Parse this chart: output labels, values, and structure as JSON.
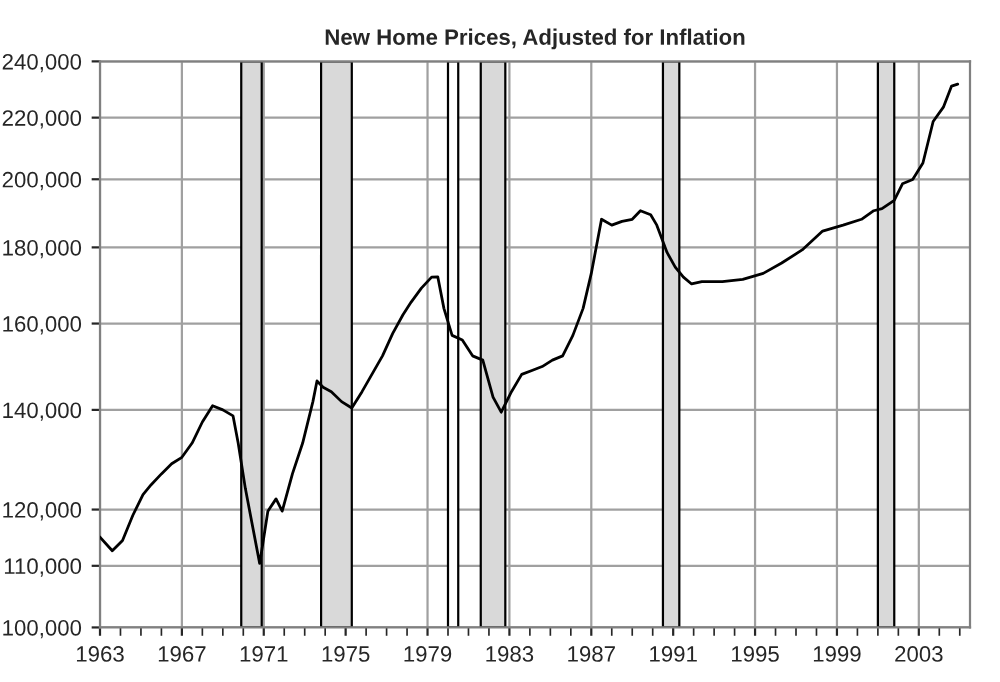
{
  "chart_data": {
    "type": "line",
    "title": "New Home Prices, Adjusted for Inflation",
    "log": "y",
    "x": [
      1963.0,
      1963.6,
      1964.1,
      1964.6,
      1965.1,
      1965.5,
      1966.0,
      1966.5,
      1967.0,
      1967.5,
      1968.0,
      1968.5,
      1969.0,
      1969.5,
      1969.75,
      1970.1,
      1970.8,
      1970.9,
      1971.2,
      1971.6,
      1971.9,
      1972.4,
      1972.9,
      1973.4,
      1973.6,
      1973.9,
      1974.3,
      1974.8,
      1975.3,
      1975.8,
      1976.8,
      1977.3,
      1977.8,
      1978.2,
      1978.7,
      1979.2,
      1979.5,
      1979.8,
      1980.2,
      1980.7,
      1981.2,
      1981.7,
      1982.2,
      1982.6,
      1983.1,
      1983.6,
      1984.1,
      1984.6,
      1985.1,
      1985.6,
      1986.1,
      1986.6,
      1987.0,
      1987.5,
      1988.0,
      1988.5,
      1989.0,
      1989.4,
      1989.9,
      1990.2,
      1990.7,
      1991.1,
      1991.5,
      1991.9,
      1992.4,
      1993.4,
      1994.4,
      1995.4,
      1996.3,
      1997.3,
      1998.3,
      1999.3,
      2000.2,
      2000.8,
      2001.2,
      2001.8,
      2002.2,
      2002.7,
      2003.2,
      2003.7,
      2004.2,
      2004.6,
      2004.9
    ],
    "series": [
      {
        "color": "#000000",
        "values": [
          115000,
          112600,
          114400,
          118900,
          122800,
          124700,
          126800,
          128800,
          130100,
          133000,
          137400,
          140900,
          140000,
          138700,
          133000,
          124000,
          110400,
          112600,
          119700,
          122000,
          119700,
          126800,
          133000,
          141800,
          146400,
          145000,
          144000,
          141800,
          140400,
          144000,
          152200,
          157600,
          162200,
          165400,
          169000,
          171900,
          172000,
          163800,
          157100,
          156000,
          152200,
          151200,
          142800,
          139500,
          144000,
          147900,
          148800,
          149700,
          151200,
          152200,
          157100,
          163800,
          172900,
          188000,
          186300,
          187400,
          188000,
          190500,
          189300,
          186300,
          178600,
          174600,
          171900,
          170100,
          170700,
          170700,
          171300,
          172900,
          175700,
          179300,
          184600,
          186300,
          188000,
          190500,
          191100,
          193600,
          198600,
          199900,
          205100,
          218700,
          223600,
          231000,
          231700
        ]
      }
    ],
    "xlim": [
      1963,
      2005.5
    ],
    "ylim": [
      100000,
      240000
    ],
    "xticks": [
      1963,
      {
        "value": 1964,
        "label": null
      },
      {
        "value": 1965,
        "label": null
      },
      {
        "value": 1966,
        "label": null
      },
      1967,
      {
        "value": 1968,
        "label": null
      },
      {
        "value": 1969,
        "label": null
      },
      {
        "value": 1970,
        "label": null
      },
      1971,
      {
        "value": 1972,
        "label": null
      },
      {
        "value": 1973,
        "label": null
      },
      {
        "value": 1974,
        "label": null
      },
      1975,
      {
        "value": 1976,
        "label": null
      },
      {
        "value": 1977,
        "label": null
      },
      {
        "value": 1978,
        "label": null
      },
      1979,
      {
        "value": 1980,
        "label": null
      },
      {
        "value": 1981,
        "label": null
      },
      {
        "value": 1982,
        "label": null
      },
      1983,
      {
        "value": 1984,
        "label": null
      },
      {
        "value": 1985,
        "label": null
      },
      {
        "value": 1986,
        "label": null
      },
      1987,
      {
        "value": 1988,
        "label": null
      },
      {
        "value": 1989,
        "label": null
      },
      {
        "value": 1990,
        "label": null
      },
      1991,
      {
        "value": 1992,
        "label": null
      },
      {
        "value": 1993,
        "label": null
      },
      {
        "value": 1994,
        "label": null
      },
      1995,
      {
        "value": 1996,
        "label": null
      },
      {
        "value": 1997,
        "label": null
      },
      {
        "value": 1998,
        "label": null
      },
      1999,
      {
        "value": 2000,
        "label": null
      },
      {
        "value": 2001,
        "label": null
      },
      {
        "value": 2002,
        "label": null
      },
      2003,
      {
        "value": 2004,
        "label": null
      },
      {
        "value": 2005,
        "label": null
      }
    ],
    "yticks": [
      {
        "value": 100000,
        "label": "100,000"
      },
      {
        "value": 110000,
        "label": "110,000"
      },
      {
        "value": 120000,
        "label": "120,000"
      },
      {
        "value": 140000,
        "label": "140,000"
      },
      {
        "value": 160000,
        "label": "160,000"
      },
      {
        "value": 180000,
        "label": "180,000"
      },
      {
        "value": 200000,
        "label": "200,000"
      },
      {
        "value": 220000,
        "label": "220,000"
      },
      {
        "value": 240000,
        "label": "240,000"
      }
    ],
    "bands": [
      {
        "axis": "x",
        "from": 1969.9,
        "to": 1970.9,
        "color": "#d9d9d9"
      },
      {
        "axis": "x",
        "from": 1973.8,
        "to": 1975.3,
        "color": "#d9d9d9"
      },
      {
        "axis": "x",
        "from": 1980.0,
        "to": 1980.5,
        "color": "#ffffff"
      },
      {
        "axis": "x",
        "from": 1981.6,
        "to": 1982.8,
        "color": "#d9d9d9"
      },
      {
        "axis": "x",
        "from": 1990.5,
        "to": 1991.3,
        "color": "#d9d9d9"
      },
      {
        "axis": "x",
        "from": 2001.0,
        "to": 2001.8,
        "color": "#d9d9d9"
      }
    ],
    "grid": true,
    "legend": false
  }
}
